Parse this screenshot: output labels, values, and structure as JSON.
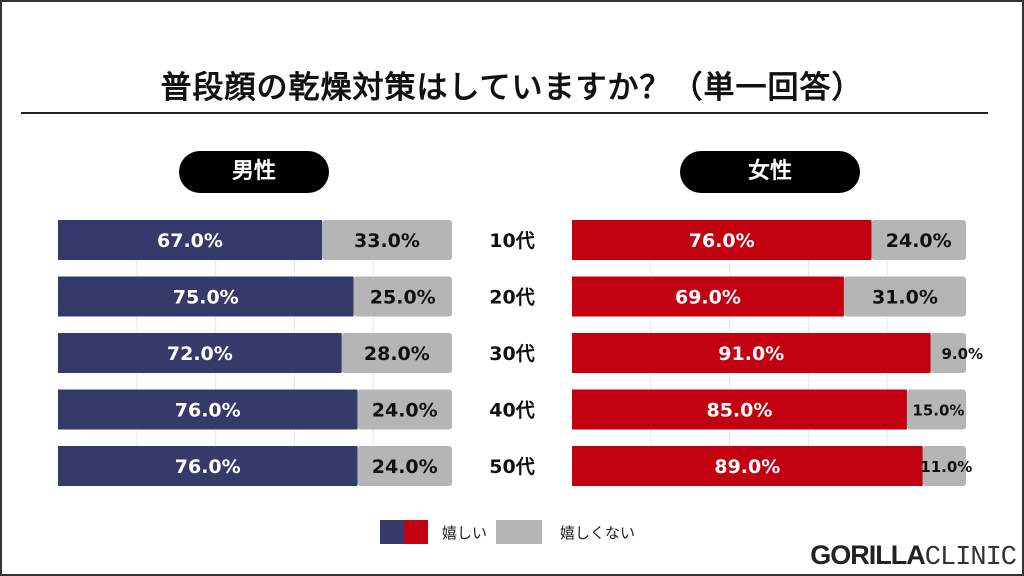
{
  "chart_data": {
    "type": "bar",
    "stacked": true,
    "orientation": "horizontal",
    "title": "普段顔の乾燥対策はしていますか？（単一回答）",
    "categories": [
      "10代",
      "20代",
      "30代",
      "40代",
      "50代"
    ],
    "xlim": [
      0,
      100
    ],
    "grid": true,
    "legend_placement": "bottom",
    "panels": [
      {
        "label": "男性",
        "series": [
          {
            "name": "嬉しい",
            "color": "#363a6b",
            "values": [
              67.0,
              75.0,
              72.0,
              76.0,
              76.0
            ]
          },
          {
            "name": "嬉しくない",
            "color": "#b5b5b5",
            "values": [
              33.0,
              25.0,
              28.0,
              24.0,
              24.0
            ]
          }
        ]
      },
      {
        "label": "女性",
        "series": [
          {
            "name": "嬉しい",
            "color": "#c3000f",
            "values": [
              76.0,
              69.0,
              91.0,
              85.0,
              89.0
            ]
          },
          {
            "name": "嬉しくない",
            "color": "#b5b5b5",
            "values": [
              24.0,
              31.0,
              9.0,
              15.0,
              11.0
            ]
          }
        ]
      }
    ],
    "legend": [
      {
        "label": "嬉しい",
        "colors": [
          "#363a6b",
          "#c3000f"
        ]
      },
      {
        "label": "嬉しくない",
        "colors": [
          "#b5b5b5"
        ]
      }
    ]
  },
  "logo": {
    "bold": "GORILLA",
    "light": "CLINIC"
  }
}
